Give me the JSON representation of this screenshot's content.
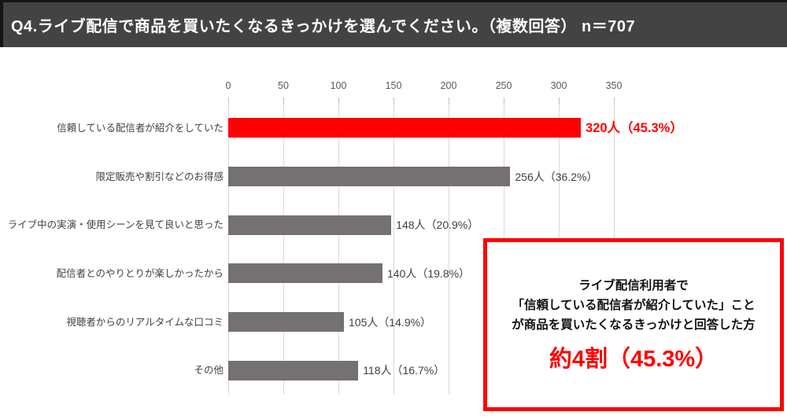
{
  "header": {
    "title": "Q4.ライブ配信で商品を買いたくなるきっかけを選んでください。（複数回答） n＝707"
  },
  "chart_data": {
    "type": "bar",
    "orientation": "horizontal",
    "categories": [
      "信頼している配信者が紹介をしていた",
      "限定販売や割引などのお得感",
      "ライブ中の実演・使用シーンを見て良いと思った",
      "配信者とのやりとりが楽しかったから",
      "視聴者からのリアルタイムな口コミ",
      "その他"
    ],
    "values": [
      320,
      256,
      148,
      140,
      105,
      118
    ],
    "percentages": [
      45.3,
      36.2,
      20.9,
      19.8,
      14.9,
      16.7
    ],
    "value_labels": [
      "320人（45.3%）",
      "256人（36.2%）",
      "148人（20.9%）",
      "140人（19.8%）",
      "105人（14.9%）",
      "118人（16.7%）"
    ],
    "x_ticks": [
      0,
      50,
      100,
      150,
      200,
      250,
      300,
      350
    ],
    "xlim": [
      0,
      350
    ],
    "grid": true,
    "legend": "none",
    "highlight_index": 0,
    "highlight_color": "#ff0000",
    "bar_color": "#757171",
    "gridline_color": "#d9d9d9",
    "n_total": 707
  },
  "callout": {
    "lines": [
      "ライブ配信利用者で",
      "「信頼している配信者が紹介していた」こと",
      "が商品を買いたくなるきっかけと回答した方"
    ],
    "highlight": "約4割（45.3%）",
    "border_color": "#ff0000",
    "highlight_text_color": "#ff0000"
  }
}
